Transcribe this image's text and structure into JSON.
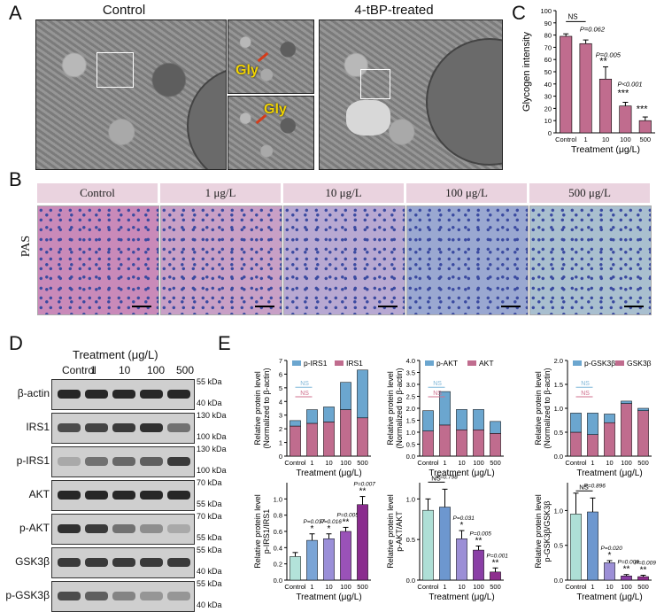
{
  "panels": {
    "a": "A",
    "b": "B",
    "c": "C",
    "d": "D",
    "e": "E"
  },
  "em": {
    "control_title": "Control",
    "treated_title": "4-tBP-treated",
    "gly_label": "Gly"
  },
  "pas": {
    "row_label": "PAS",
    "columns": [
      "Control",
      "1 μg/L",
      "10 μg/L",
      "100 μg/L",
      "500 μg/L"
    ]
  },
  "western": {
    "title": "Treatment (μg/L)",
    "lanes": [
      "Control",
      "1",
      "10",
      "100",
      "500"
    ],
    "rows": [
      {
        "label": "β-actin",
        "kda_top": "55 kDa",
        "kda_bottom": "40 kDa"
      },
      {
        "label": "IRS1",
        "kda_top": "130 kDa",
        "kda_bottom": "100 kDa"
      },
      {
        "label": "p-IRS1",
        "kda_top": "130 kDa",
        "kda_bottom": "100 kDa"
      },
      {
        "label": "AKT",
        "kda_top": "70 kDa",
        "kda_bottom": "55 kDa"
      },
      {
        "label": "p-AKT",
        "kda_top": "70 kDa",
        "kda_bottom": "55 kDa"
      },
      {
        "label": "GSK3β",
        "kda_top": "55 kDa",
        "kda_bottom": "40 kDa"
      },
      {
        "label": "p-GSK3β",
        "kda_top": "55 kDa",
        "kda_bottom": "40 kDa"
      }
    ]
  },
  "colors": {
    "pink_bar": "#c06c8e",
    "blue_bar": "#6ba6cf",
    "bar_teal": "#aedfd6",
    "bar_blue": "#6d97cf",
    "bar_lilac": "#9c8fd6",
    "bar_purple": "#8a3fa6",
    "bar_dpurple": "#8e2f8e",
    "ns_blue": "#7fb7d8",
    "ns_red": "#d0708e"
  },
  "chart_data": [
    {
      "id": "C",
      "type": "bar",
      "categories": [
        "Control",
        "1",
        "10",
        "100",
        "500"
      ],
      "values": [
        79,
        73,
        44,
        22,
        10
      ],
      "errors": [
        2,
        3,
        10,
        3,
        3
      ],
      "ylabel": "Glycogen intensity",
      "xlabel": "Treatment (μg/L)",
      "ylim": [
        0,
        100
      ],
      "yticks": [
        "0",
        "10",
        "20",
        "30",
        "40",
        "50",
        "60",
        "70",
        "80",
        "90",
        "100"
      ],
      "annotations": {
        "ns": "NS",
        "p1": "P=0.062",
        "p2": "P=0.005",
        "p3": "P<0.001",
        "stars10": "**",
        "stars100": "***",
        "stars500": "***"
      }
    },
    {
      "id": "E1",
      "type": "bar",
      "stacked": true,
      "categories": [
        "Control",
        "1",
        "10",
        "100",
        "500"
      ],
      "series": [
        {
          "name": "IRS1",
          "values": [
            2.2,
            2.4,
            2.5,
            3.4,
            2.8
          ]
        },
        {
          "name": "p-IRS1",
          "values": [
            0.4,
            1.0,
            1.1,
            2.0,
            3.5
          ]
        }
      ],
      "ylabel": "Relative protein level\n(Normalized to β-actin)",
      "xlabel": "Treatment (μg/L)",
      "ylim": [
        0,
        7
      ],
      "yticks": [
        "0",
        "1",
        "2",
        "3",
        "4",
        "5",
        "6",
        "7"
      ],
      "ns": "NS"
    },
    {
      "id": "E2",
      "type": "bar",
      "stacked": true,
      "categories": [
        "Control",
        "1",
        "10",
        "100",
        "500"
      ],
      "series": [
        {
          "name": "AKT",
          "values": [
            1.05,
            1.3,
            1.1,
            1.1,
            0.95
          ]
        },
        {
          "name": "p-AKT",
          "values": [
            0.85,
            1.4,
            0.85,
            0.85,
            0.5
          ]
        }
      ],
      "ylabel": "Relative protein level\n(Normalized to β-actin)",
      "xlabel": "Treatment (μg/L)",
      "ylim": [
        0,
        4
      ],
      "yticks": [
        "0.0",
        "0.5",
        "1.0",
        "1.5",
        "2.0",
        "2.5",
        "3.0",
        "3.5",
        "4.0"
      ],
      "ns": "NS"
    },
    {
      "id": "E3",
      "type": "bar",
      "stacked": true,
      "categories": [
        "Control",
        "1",
        "10",
        "100",
        "500"
      ],
      "series": [
        {
          "name": "GSK3β",
          "values": [
            0.5,
            0.45,
            0.7,
            1.1,
            0.95
          ]
        },
        {
          "name": "p-GSK3β",
          "values": [
            0.4,
            0.45,
            0.18,
            0.05,
            0.05
          ]
        }
      ],
      "ylabel": "Relative protein level\n(Normalized to β-actin)",
      "xlabel": "Treatment (μg/L)",
      "ylim": [
        0,
        2
      ],
      "yticks": [
        "0.0",
        "0.5",
        "1.0",
        "1.5",
        "2.0"
      ],
      "ns": "NS"
    },
    {
      "id": "E4",
      "type": "bar",
      "categories": [
        "Control",
        "1",
        "10",
        "100",
        "500"
      ],
      "values": [
        0.29,
        0.49,
        0.51,
        0.6,
        0.93
      ],
      "errors": [
        0.05,
        0.08,
        0.06,
        0.05,
        0.1
      ],
      "ylabel": "Relative protein level\np-IRS1/IRS1",
      "xlabel": "Treatment (μg/L)",
      "ylim": [
        0,
        1.2
      ],
      "yticks": [
        "0.0",
        "0.2",
        "0.4",
        "0.6",
        "0.8",
        "1.0"
      ],
      "annotations": [
        "",
        "P=0.037",
        "P=0.016",
        "P=0.005",
        "P=0.007"
      ],
      "stars": [
        "",
        "*",
        "*",
        "**",
        "**"
      ]
    },
    {
      "id": "E5",
      "type": "bar",
      "categories": [
        "Control",
        "1",
        "10",
        "100",
        "500"
      ],
      "values": [
        0.86,
        0.9,
        0.51,
        0.37,
        0.1
      ],
      "errors": [
        0.14,
        0.22,
        0.1,
        0.05,
        0.05
      ],
      "ylabel": "Relative protein level\np-AKT/AKT",
      "xlabel": "Treatment (μg/L)",
      "ylim": [
        0,
        1.2
      ],
      "yticks": [
        "0.0",
        "0.5",
        "1.0"
      ],
      "annotations": [
        "",
        "P=0.798",
        "P=0.031",
        "P=0.005",
        "P=0.001"
      ],
      "stars": [
        "",
        "NS",
        "*",
        "**",
        "**"
      ]
    },
    {
      "id": "E6",
      "type": "bar",
      "categories": [
        "Control",
        "1",
        "10",
        "100",
        "500"
      ],
      "values": [
        0.95,
        0.98,
        0.25,
        0.06,
        0.05
      ],
      "errors": [
        0.3,
        0.2,
        0.03,
        0.02,
        0.02
      ],
      "ylabel": "Relative protein level\np-GSK3β/GSK3β",
      "xlabel": "Treatment (μg/L)",
      "ylim": [
        0,
        1.4
      ],
      "yticks": [
        "0.0",
        "0.5",
        "1.0"
      ],
      "annotations": [
        "",
        "P=0.896",
        "P=0.020",
        "P=0.009",
        "P=0.009"
      ],
      "stars": [
        "",
        "NS",
        "*",
        "**",
        "**"
      ]
    }
  ]
}
